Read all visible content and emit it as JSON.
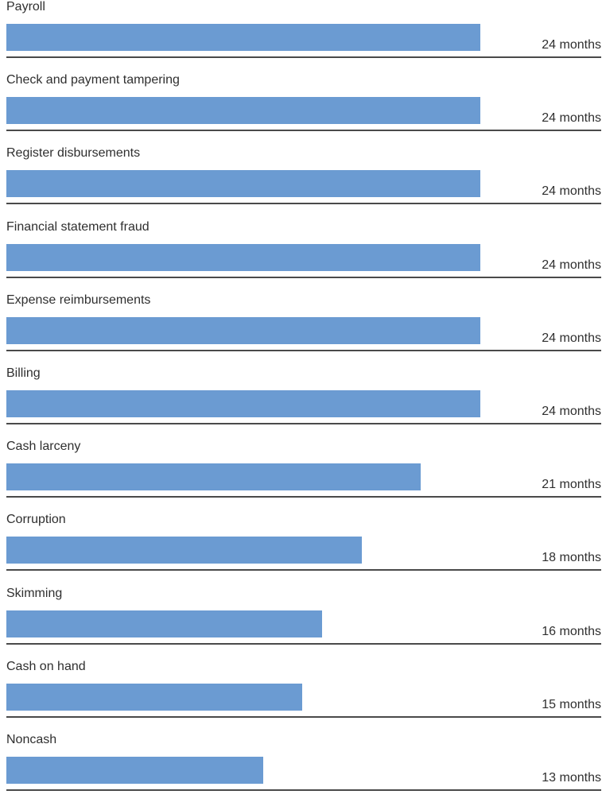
{
  "chart_data": {
    "type": "bar",
    "orientation": "horizontal",
    "categories": [
      "Payroll",
      "Check and payment tampering",
      "Register disbursements",
      "Financial statement fraud",
      "Expense reimbursements",
      "Billing",
      "Cash larceny",
      "Corruption",
      "Skimming",
      "Cash on hand",
      "Noncash"
    ],
    "values": [
      24,
      24,
      24,
      24,
      24,
      24,
      21,
      18,
      16,
      15,
      13
    ],
    "value_labels": [
      "24 months",
      "24 months",
      "24 months",
      "24 months",
      "24 months",
      "24 months",
      "21 months",
      "18 months",
      "16 months",
      "15 months",
      "13 months"
    ],
    "xlim": [
      0,
      29.8
    ],
    "grid": false,
    "bar_color": "#6b9bd2"
  }
}
